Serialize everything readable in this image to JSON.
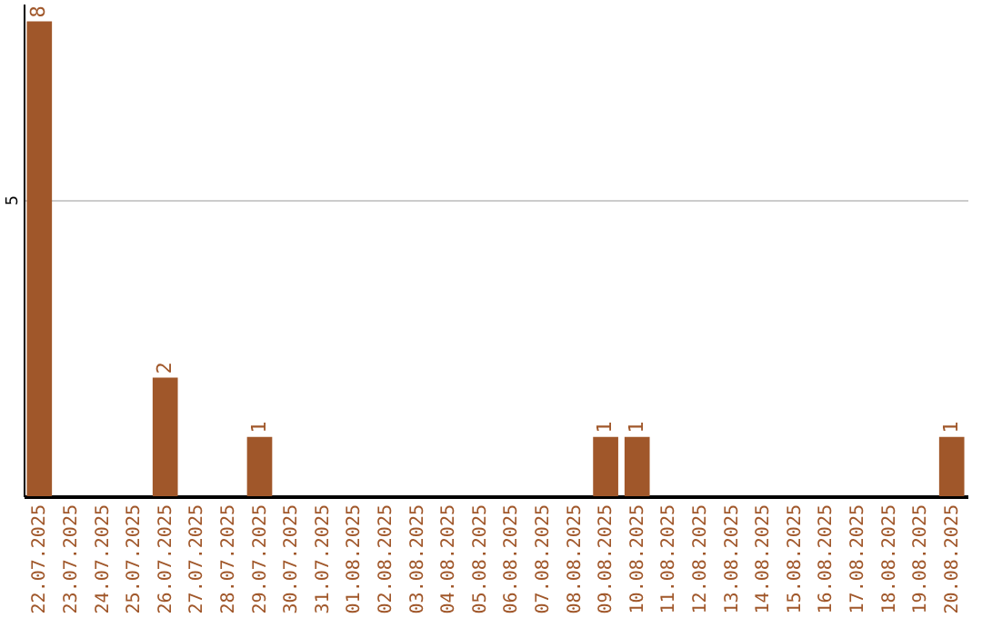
{
  "chart_data": {
    "type": "bar",
    "categories": [
      "22.07.2025",
      "23.07.2025",
      "24.07.2025",
      "25.07.2025",
      "26.07.2025",
      "27.07.2025",
      "28.07.2025",
      "29.07.2025",
      "30.07.2025",
      "31.07.2025",
      "01.08.2025",
      "02.08.2025",
      "03.08.2025",
      "04.08.2025",
      "05.08.2025",
      "06.08.2025",
      "07.08.2025",
      "08.08.2025",
      "09.08.2025",
      "10.08.2025",
      "11.08.2025",
      "12.08.2025",
      "13.08.2025",
      "14.08.2025",
      "15.08.2025",
      "16.08.2025",
      "17.08.2025",
      "18.08.2025",
      "19.08.2025",
      "20.08.2025"
    ],
    "values": [
      8,
      0,
      0,
      0,
      2,
      0,
      0,
      1,
      0,
      0,
      0,
      0,
      0,
      0,
      0,
      0,
      0,
      0,
      1,
      1,
      0,
      0,
      0,
      0,
      0,
      0,
      0,
      0,
      0,
      1
    ],
    "value_labels": [
      "8",
      null,
      null,
      null,
      "2",
      null,
      null,
      "1",
      null,
      null,
      null,
      null,
      null,
      null,
      null,
      null,
      null,
      null,
      "1",
      "1",
      null,
      null,
      null,
      null,
      null,
      null,
      null,
      null,
      null,
      "1"
    ],
    "color": "#a0572a",
    "ylim": [
      0,
      8.3
    ],
    "yticks": [
      5
    ],
    "grid": "y"
  }
}
